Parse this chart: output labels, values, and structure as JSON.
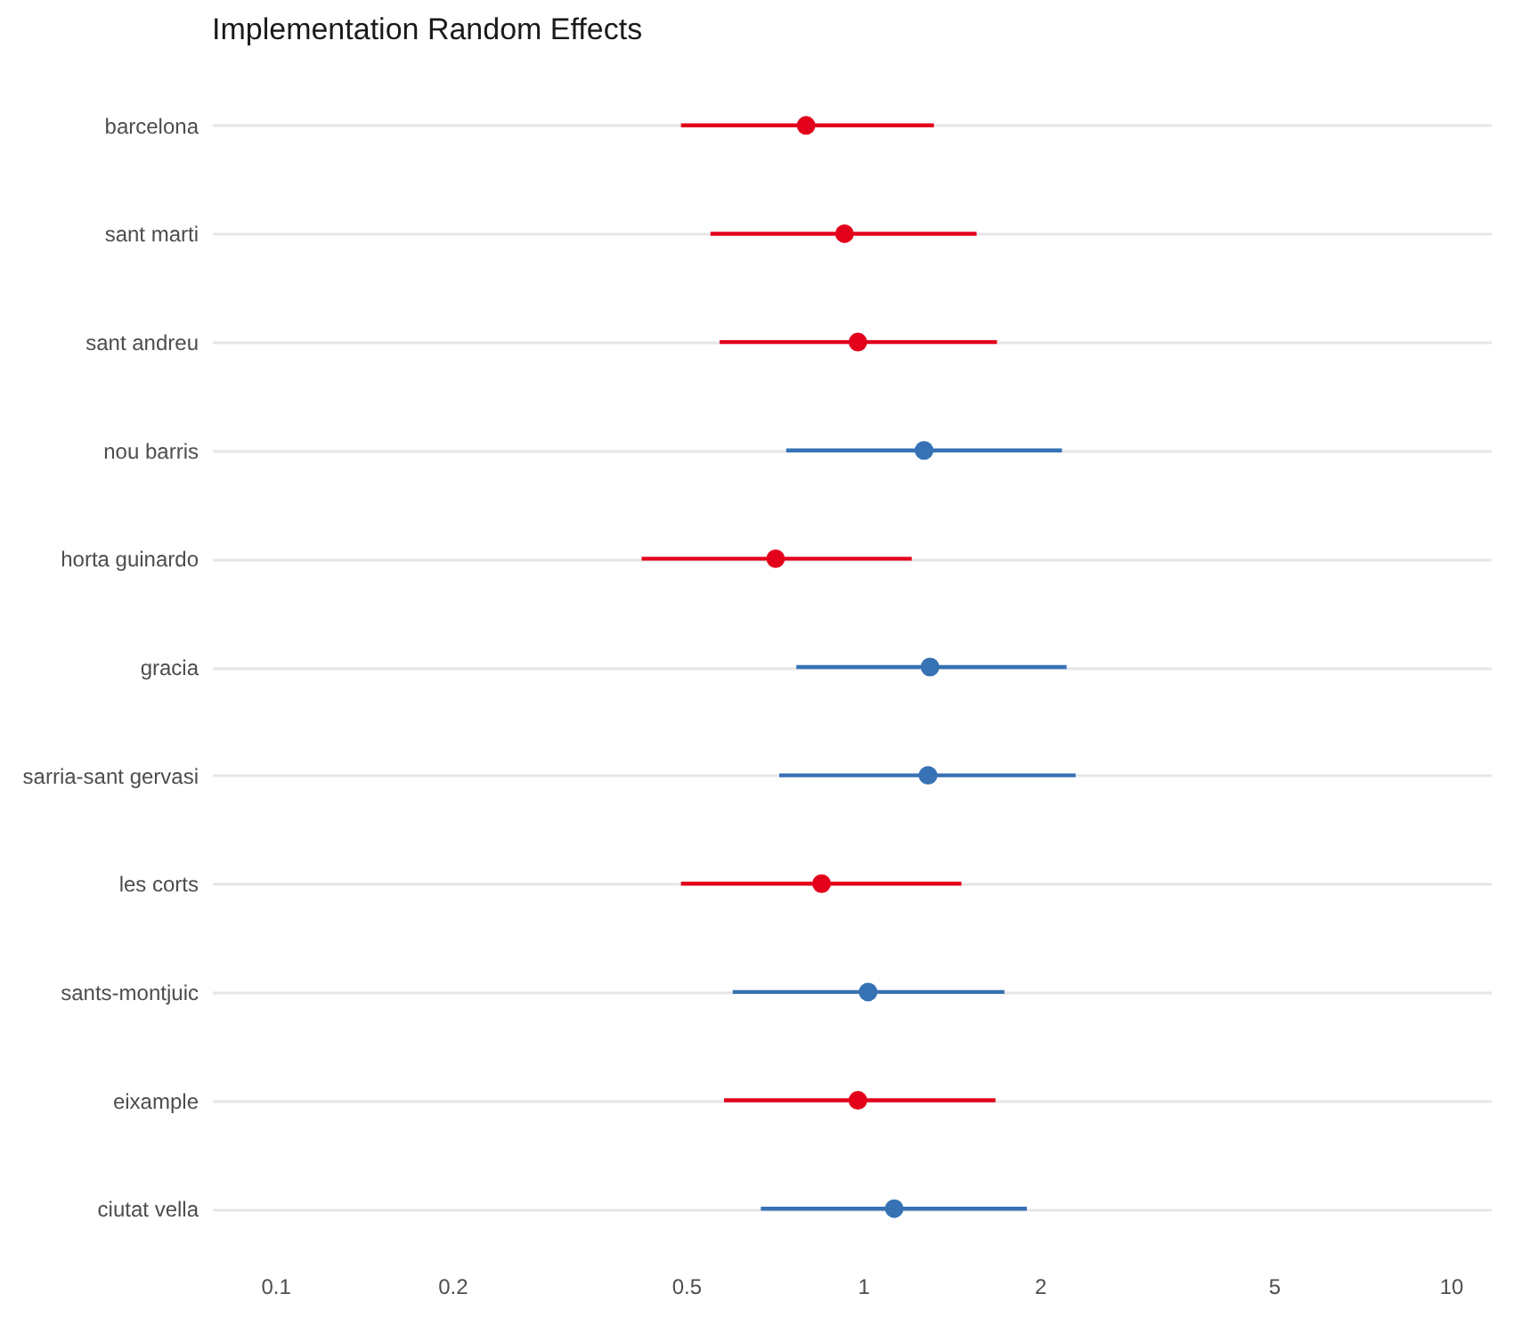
{
  "chart_data": {
    "type": "scatter",
    "title": "Implementation Random Effects",
    "orientation": "horizontal",
    "categories": [
      "barcelona",
      "sant marti",
      "sant andreu",
      "nou barris",
      "horta guinardo",
      "gracia",
      "sarria-sant gervasi",
      "les corts",
      "sants-montjuic",
      "eixample",
      "ciutat vella"
    ],
    "values": [
      0.8,
      0.93,
      0.98,
      1.27,
      0.71,
      1.3,
      1.29,
      0.85,
      1.02,
      0.98,
      1.13
    ],
    "errors": [
      [
        0.49,
        1.32
      ],
      [
        0.55,
        1.56
      ],
      [
        0.57,
        1.69
      ],
      [
        0.74,
        2.18
      ],
      [
        0.42,
        1.21
      ],
      [
        0.77,
        2.22
      ],
      [
        0.72,
        2.3
      ],
      [
        0.49,
        1.47
      ],
      [
        0.6,
        1.74
      ],
      [
        0.58,
        1.68
      ],
      [
        0.67,
        1.9
      ]
    ],
    "colors": [
      "#e3001b",
      "#e3001b",
      "#e3001b",
      "#3672b4",
      "#e3001b",
      "#3672b4",
      "#3672b4",
      "#e3001b",
      "#3672b4",
      "#e3001b",
      "#3672b4"
    ],
    "log": "x",
    "xlim": [
      0.078,
      11.7
    ],
    "xticks": [
      0.1,
      0.2,
      0.5,
      1,
      2,
      5,
      10
    ],
    "grid": "y",
    "marker": "circle"
  }
}
